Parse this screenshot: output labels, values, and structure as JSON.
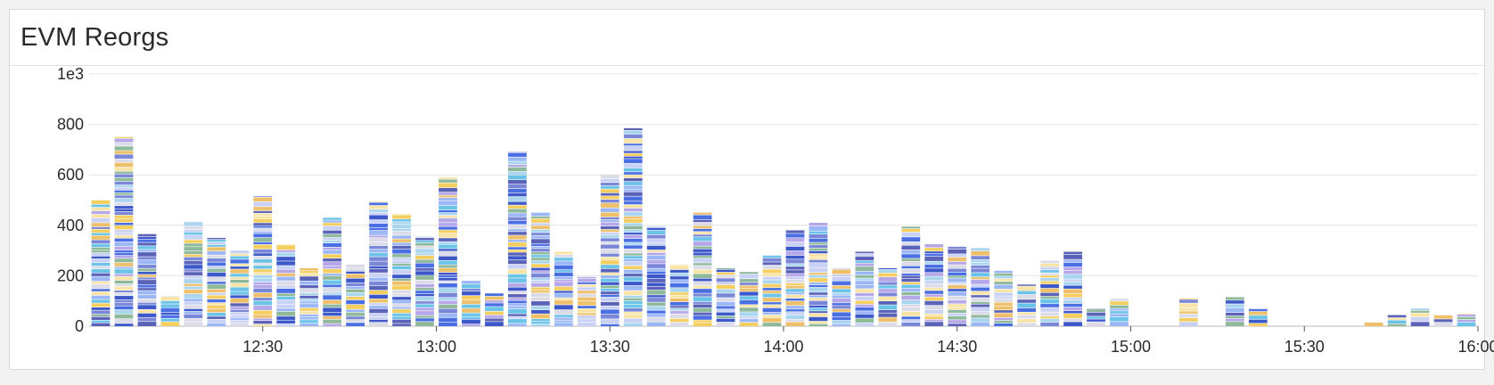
{
  "panel": {
    "title": "EVM Reorgs"
  },
  "chart_data": {
    "type": "bar",
    "stacked": true,
    "title": "EVM Reorgs",
    "xlabel": "",
    "ylabel": "",
    "ylim": [
      0,
      1000
    ],
    "yticks": [
      {
        "value": 0,
        "label": "0"
      },
      {
        "value": 200,
        "label": "200"
      },
      {
        "value": 400,
        "label": "400"
      },
      {
        "value": 600,
        "label": "600"
      },
      {
        "value": 800,
        "label": "800"
      },
      {
        "value": 1000,
        "label": "1e3"
      }
    ],
    "xrange": [
      "12:00",
      "16:00"
    ],
    "xticks": [
      "12:30",
      "13:00",
      "13:30",
      "14:00",
      "14:30",
      "15:00",
      "15:30",
      "16:00"
    ],
    "grid": true,
    "bin_minutes": 4,
    "categories": [
      "12:00",
      "12:04",
      "12:08",
      "12:12",
      "12:16",
      "12:20",
      "12:24",
      "12:28",
      "12:32",
      "12:36",
      "12:40",
      "12:44",
      "12:48",
      "12:52",
      "12:56",
      "13:00",
      "13:04",
      "13:08",
      "13:12",
      "13:16",
      "13:20",
      "13:24",
      "13:28",
      "13:32",
      "13:36",
      "13:40",
      "13:44",
      "13:48",
      "13:52",
      "13:56",
      "14:00",
      "14:04",
      "14:08",
      "14:12",
      "14:16",
      "14:20",
      "14:24",
      "14:28",
      "14:32",
      "14:36",
      "14:40",
      "14:44",
      "14:48",
      "14:52",
      "14:56",
      "15:00",
      "15:04",
      "15:08",
      "15:12",
      "15:16",
      "15:20",
      "15:24",
      "15:28",
      "15:32",
      "15:36",
      "15:40",
      "15:44",
      "15:48",
      "15:52",
      "15:56"
    ],
    "values": [
      500,
      750,
      365,
      120,
      415,
      350,
      300,
      515,
      325,
      230,
      430,
      245,
      495,
      445,
      355,
      590,
      180,
      130,
      690,
      450,
      295,
      195,
      600,
      785,
      395,
      245,
      450,
      230,
      215,
      280,
      380,
      410,
      230,
      295,
      230,
      395,
      325,
      315,
      310,
      220,
      165,
      260,
      295,
      70,
      110,
      0,
      0,
      110,
      0,
      115,
      70,
      0,
      0,
      0,
      0,
      15,
      45,
      70,
      45,
      50
    ],
    "segment_palette": [
      "#4a6fe3",
      "#f4cf5f",
      "#9bb7f5",
      "#6cc3e8",
      "#c9d2f4",
      "#7a86d6",
      "#f7e4a6",
      "#5b63b8",
      "#a9d6ee",
      "#eec06b",
      "#3d58c9",
      "#b6a7e8",
      "#8fb99b",
      "#dcdce8"
    ]
  }
}
